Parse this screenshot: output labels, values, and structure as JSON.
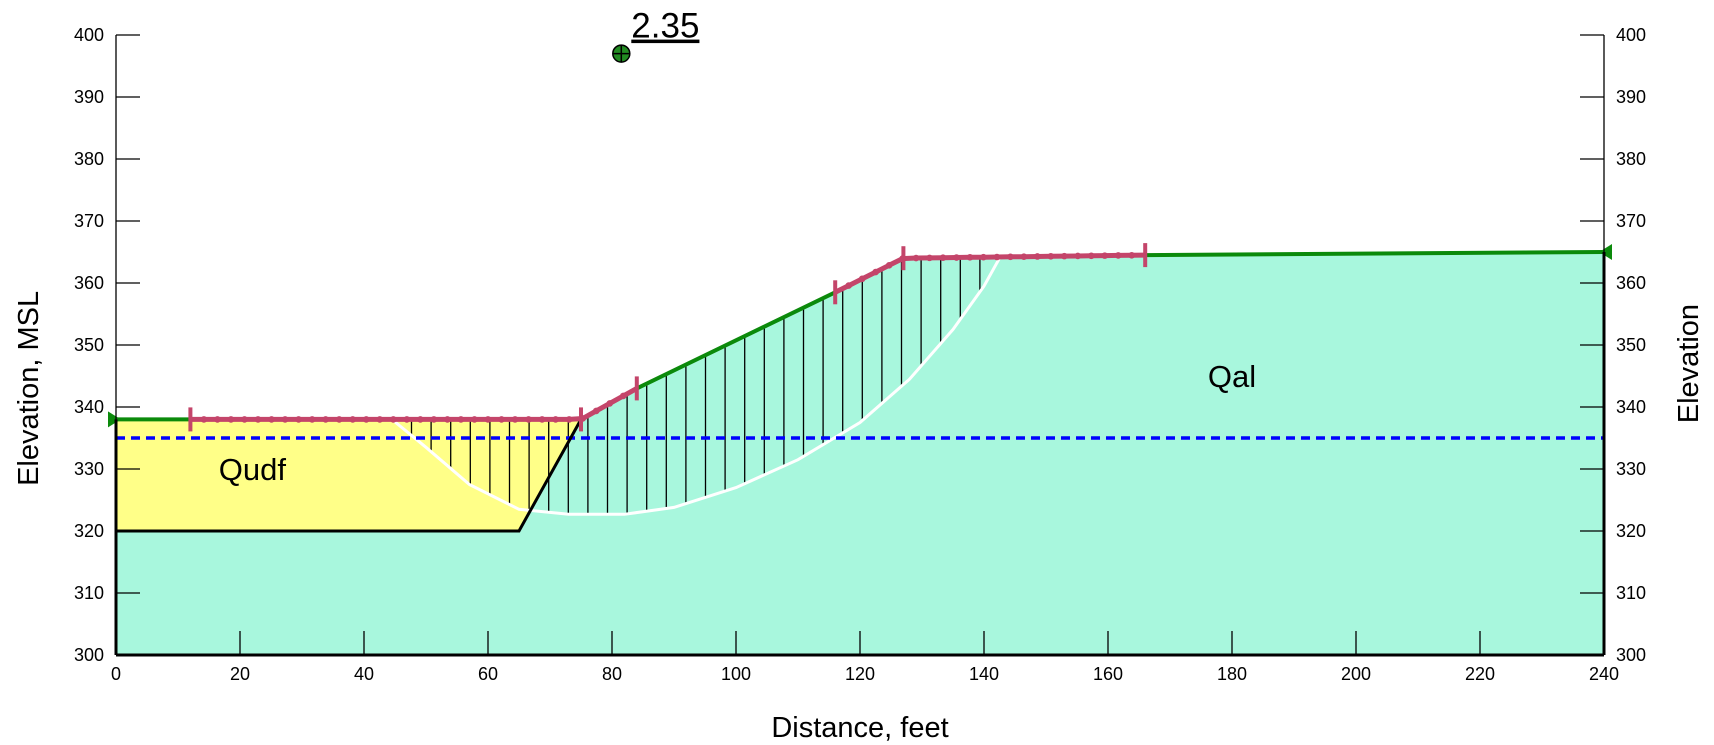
{
  "axes": {
    "x_title": "Distance, feet",
    "y_left_title": "Elevation, MSL",
    "y_right_title": "Elevation",
    "x_range": [
      0,
      240
    ],
    "y_range": [
      300,
      400
    ],
    "x_ticks": [
      0,
      20,
      40,
      60,
      80,
      100,
      120,
      140,
      160,
      180,
      200,
      220,
      240
    ],
    "y_ticks": [
      300,
      310,
      320,
      330,
      340,
      350,
      360,
      370,
      380,
      390,
      400
    ]
  },
  "materials": [
    {
      "name": "Qudf",
      "color": "#ffff88",
      "label_at": [
        22,
        330
      ]
    },
    {
      "name": "Qal",
      "color": "#a8f7dd",
      "label_at": [
        180,
        345
      ]
    }
  ],
  "factor_of_safety": {
    "value": "2.35",
    "center": [
      81.5,
      397
    ]
  },
  "geometry": {
    "ground_surface": [
      [
        0,
        338
      ],
      [
        75,
        338
      ],
      [
        84,
        343
      ],
      [
        116,
        358.5
      ],
      [
        127,
        364
      ],
      [
        166,
        364.5
      ],
      [
        240,
        365
      ]
    ],
    "qudf_layer": [
      [
        0,
        338
      ],
      [
        75,
        338
      ],
      [
        65,
        320
      ],
      [
        0,
        320
      ]
    ],
    "water_table_elevation": 335,
    "slip_surface": [
      [
        44.5,
        338
      ],
      [
        50,
        333.5
      ],
      [
        57,
        327.5
      ],
      [
        65,
        323.5
      ],
      [
        73,
        322.7
      ],
      [
        82,
        322.7
      ],
      [
        90,
        323.8
      ],
      [
        100,
        327
      ],
      [
        110,
        331.5
      ],
      [
        120,
        337.5
      ],
      [
        128,
        344.5
      ],
      [
        135,
        352.5
      ],
      [
        140,
        359.5
      ],
      [
        142.5,
        364
      ]
    ],
    "entry_range": [
      12,
      84
    ],
    "exit_range": [
      116,
      166
    ]
  },
  "colors": {
    "ground_line": "#0b8a0b",
    "water_table": "#0000ff",
    "slip_surface": "#ffffff",
    "slice_lines": "#000000",
    "entry_exit": "#c4456a",
    "fos_marker": "#228b22"
  }
}
